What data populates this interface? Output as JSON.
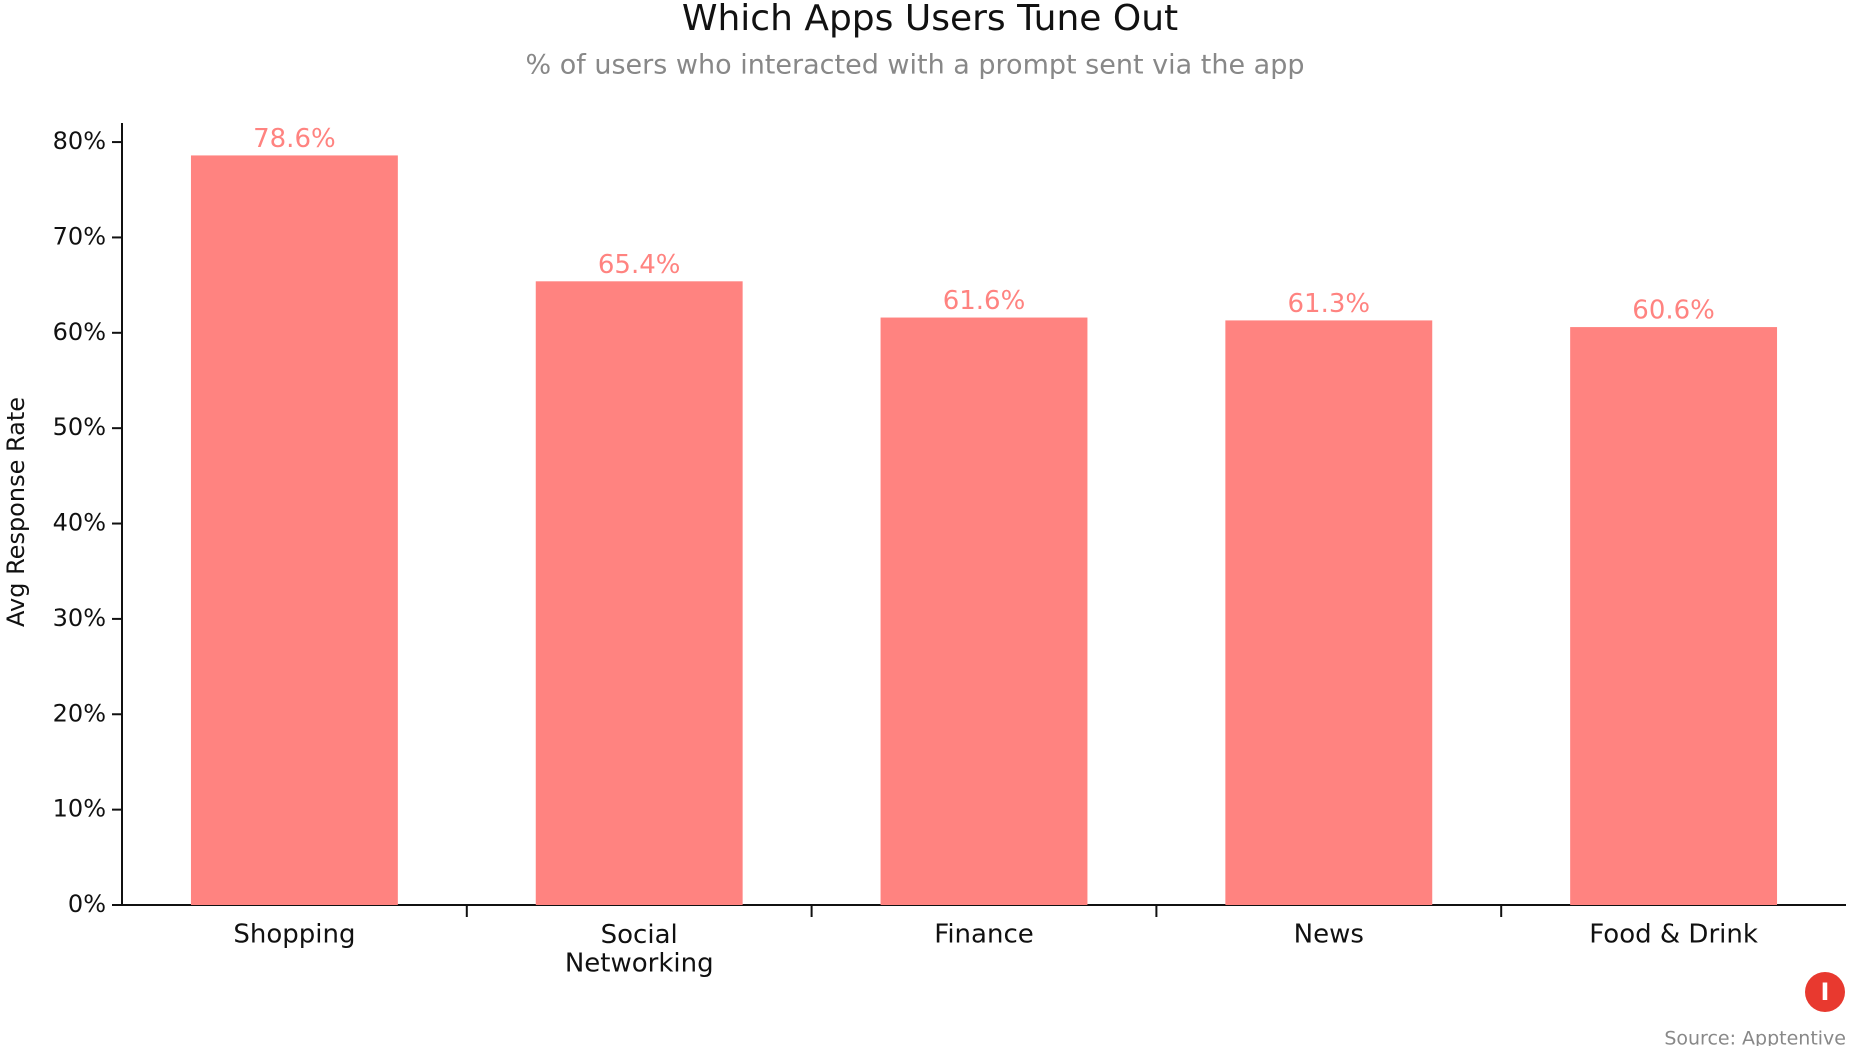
{
  "chart_data": {
    "type": "bar",
    "title": "Which Apps Users Tune Out",
    "subtitle": "% of users who interacted with a prompt sent via the app",
    "y_label": "Avg Response Rate",
    "categories": [
      "Shopping",
      "Social\nNetworking",
      "Finance",
      "News",
      "Food & Drink"
    ],
    "values": [
      78.6,
      65.4,
      61.6,
      61.3,
      60.6
    ],
    "value_labels": [
      "78.6%",
      "65.4%",
      "61.6%",
      "61.3%",
      "60.6%"
    ],
    "color": "#ff8380",
    "ylim": [
      0,
      82
    ],
    "yticks": [
      {
        "value": 0,
        "label": "0%"
      },
      {
        "value": 10,
        "label": "10%"
      },
      {
        "value": 20,
        "label": "20%"
      },
      {
        "value": 30,
        "label": "30%"
      },
      {
        "value": 40,
        "label": "40%"
      },
      {
        "value": 50,
        "label": "50%"
      },
      {
        "value": 60,
        "label": "60%"
      },
      {
        "value": 70,
        "label": "70%"
      },
      {
        "value": 80,
        "label": "80%"
      }
    ],
    "grid": false,
    "source": "Source: Apptentive"
  }
}
